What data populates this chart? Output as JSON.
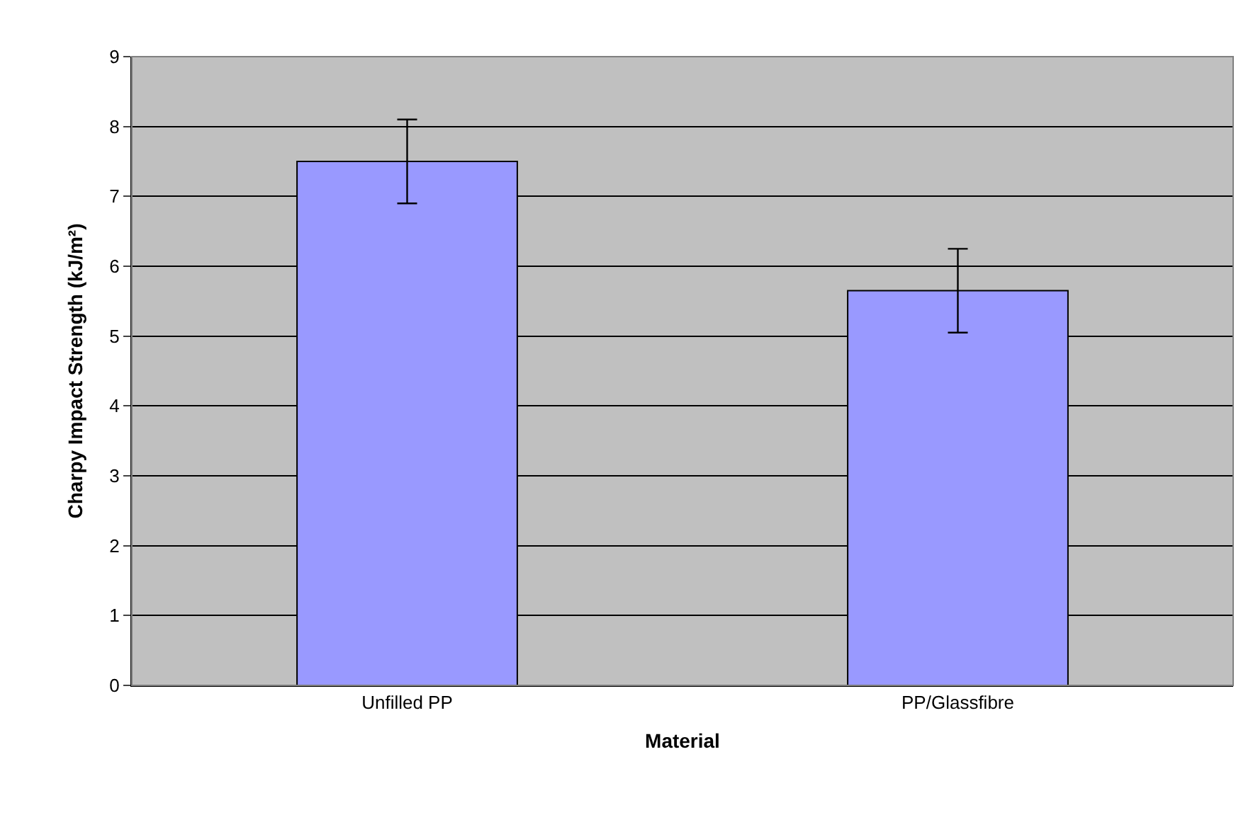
{
  "chart_data": {
    "type": "bar",
    "xlabel": "Material",
    "ylabel": "Charpy Impact Strength (kJ/m²)",
    "categories": [
      "Unfilled PP",
      "PP/Glassfibre"
    ],
    "values": [
      7.5,
      5.65
    ],
    "errors": [
      0.6,
      0.6
    ],
    "color": "#9999ff",
    "ylim": [
      0,
      9
    ],
    "yticks": [
      0,
      1,
      2,
      3,
      4,
      5,
      6,
      7,
      8,
      9
    ],
    "grid": "y",
    "legend": false
  }
}
